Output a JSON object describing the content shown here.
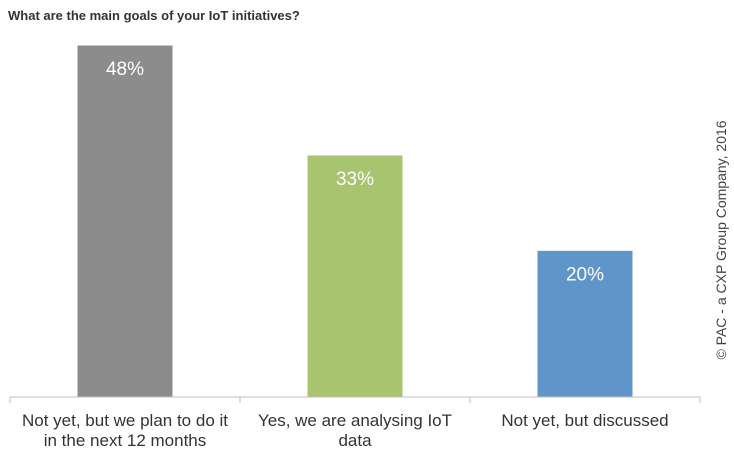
{
  "title": "What are the main goals of your IoT initiatives?",
  "copyright": "© PAC - a CXP Group Company, 2016",
  "chart_data": {
    "type": "bar",
    "categories": [
      [
        "Not yet, but we plan to do it",
        "in the next 12 months"
      ],
      [
        "Yes, we are analysing IoT",
        "data"
      ],
      [
        "Not yet, but discussed"
      ]
    ],
    "values": [
      48,
      33,
      20
    ],
    "value_labels": [
      "48%",
      "33%",
      "20%"
    ],
    "colors": [
      "#8c8c8c",
      "#a9c46f",
      "#5f95c8"
    ],
    "ylim": [
      0,
      48
    ],
    "grid": false,
    "legend": "none"
  }
}
